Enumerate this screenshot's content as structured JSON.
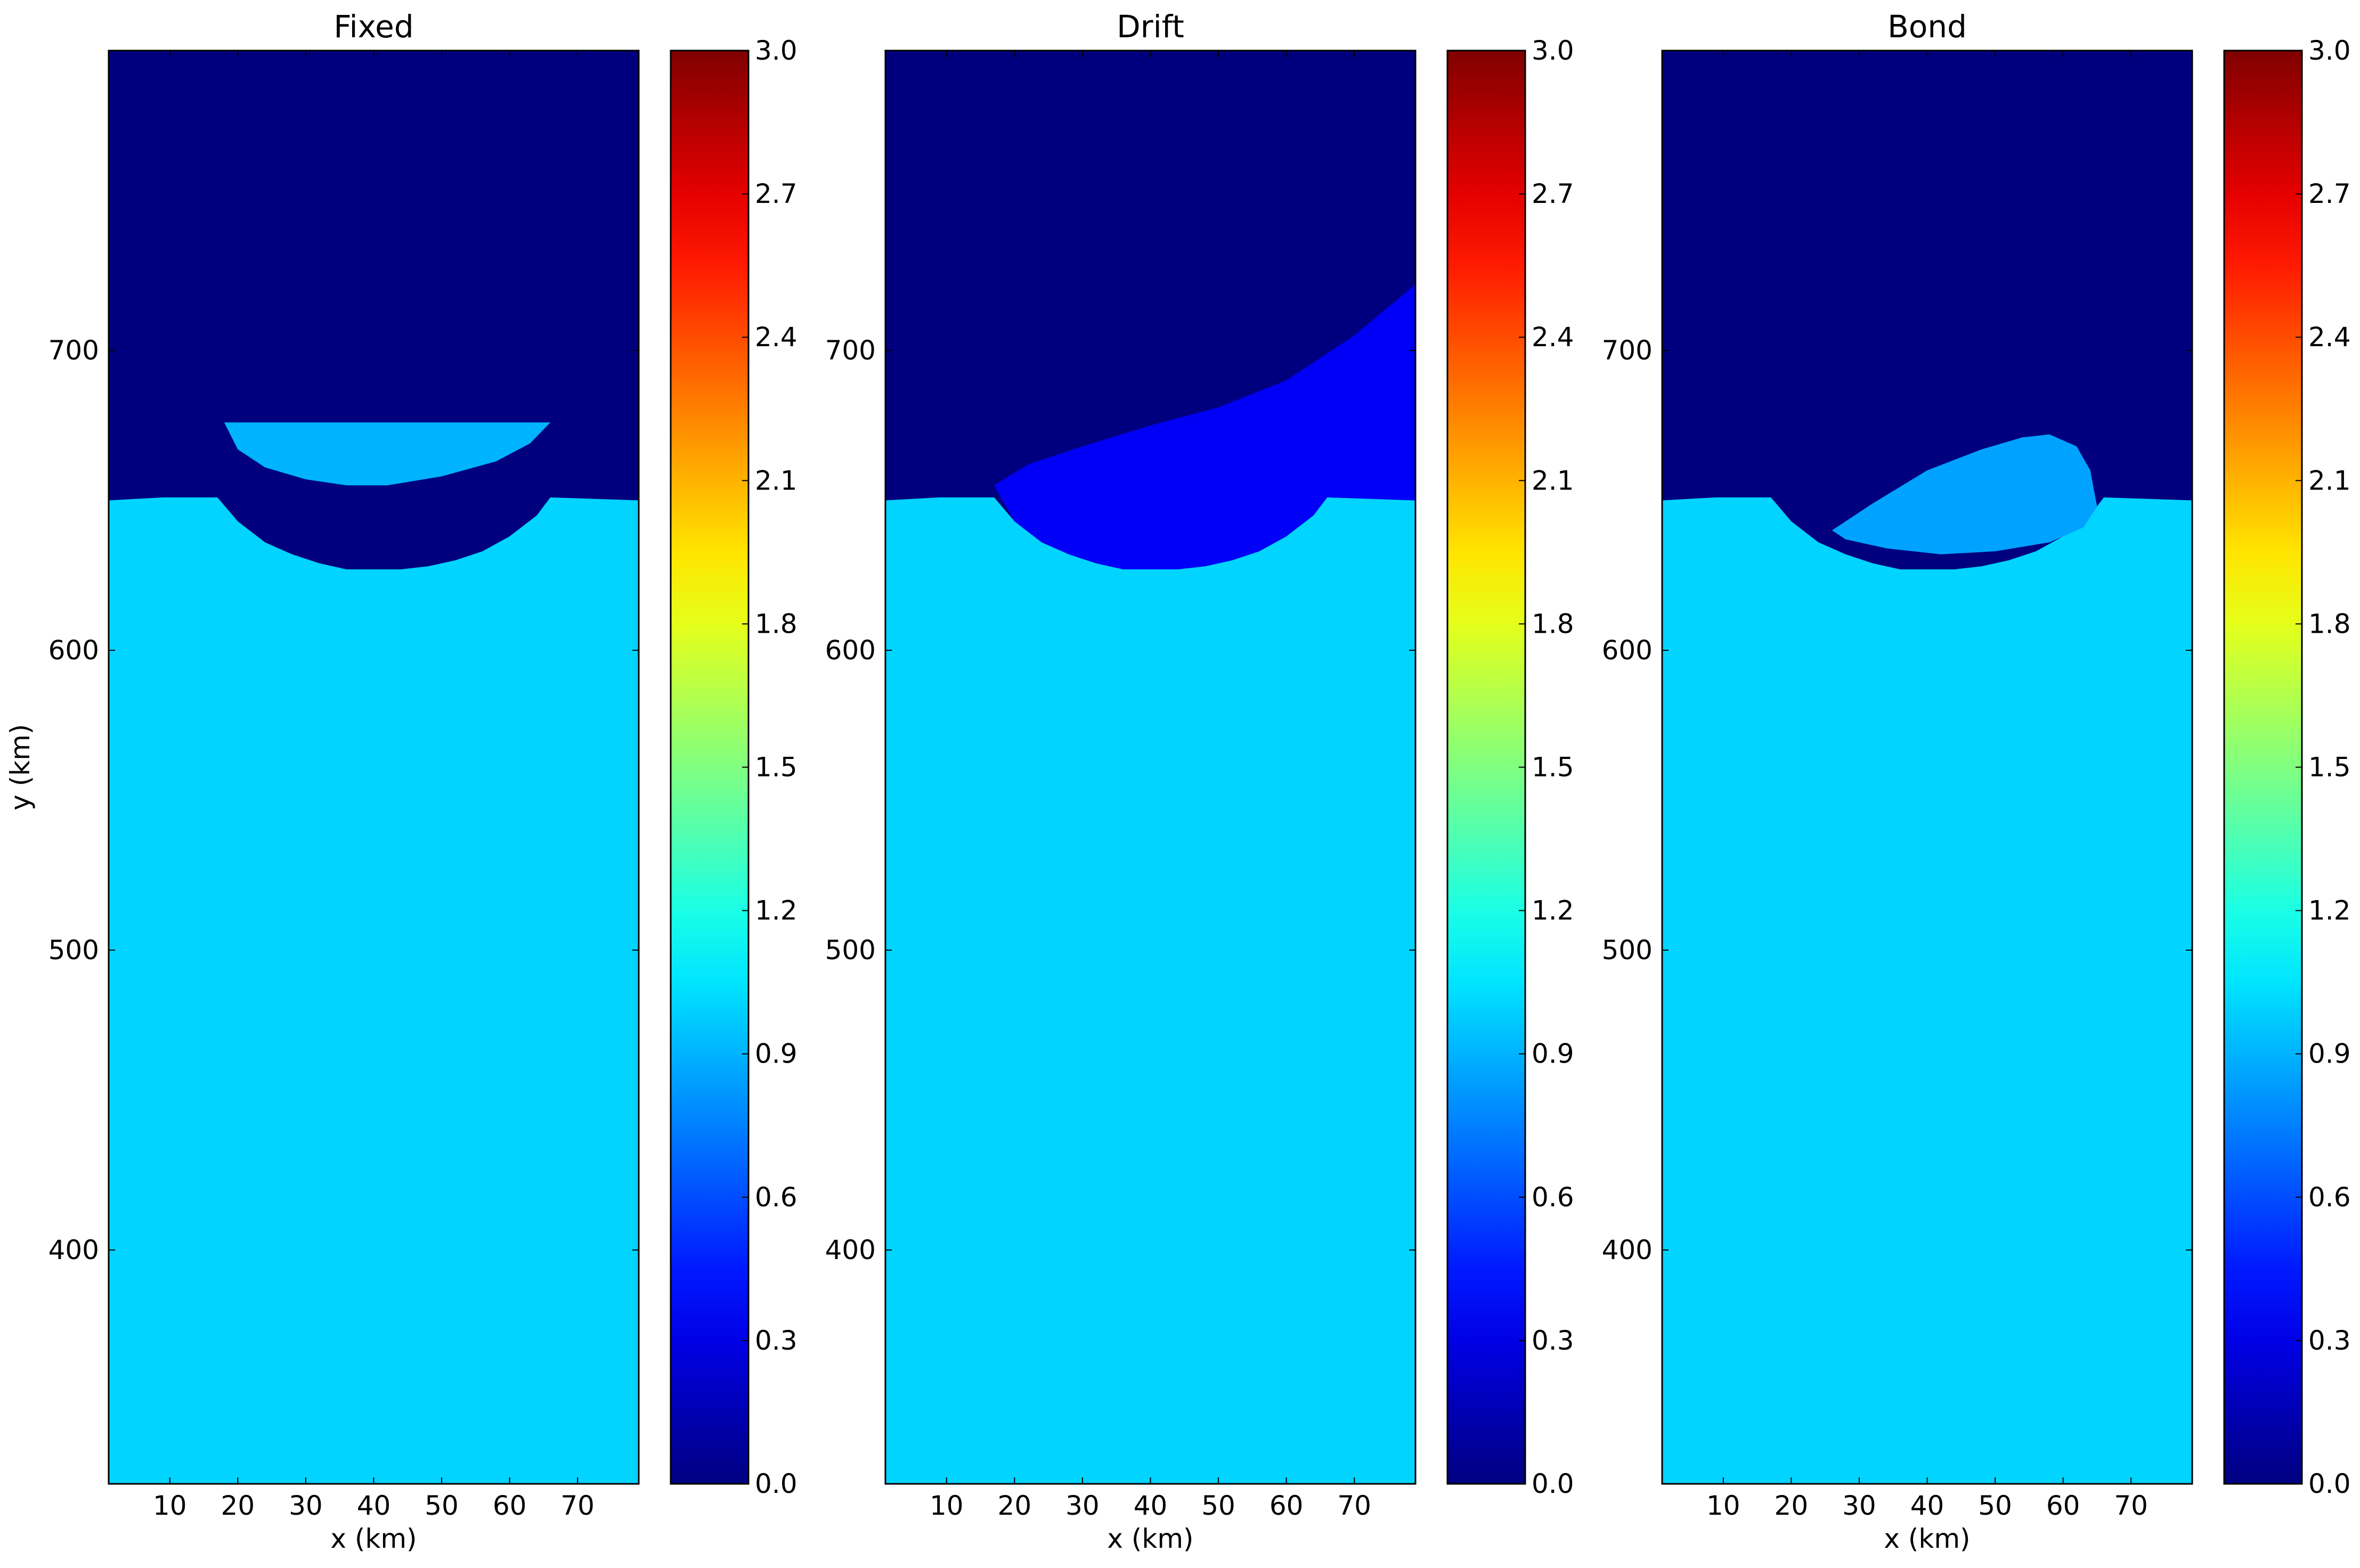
{
  "figure": {
    "colormap": "jet",
    "colorbar": {
      "range": [
        0.0,
        3.0
      ],
      "ticks": [
        "0.0",
        "0.3",
        "0.6",
        "0.9",
        "1.2",
        "1.5",
        "1.8",
        "2.1",
        "2.4",
        "2.7",
        "3.0"
      ]
    },
    "colors": {
      "low": "#00007f",
      "bulk": "#00d4ff",
      "upper_dark": "#00007f"
    }
  },
  "chart_data": [
    {
      "type": "heatmap",
      "title": "Fixed",
      "xlabel": "x (km)",
      "ylabel": "y (km)",
      "xlim": [
        1,
        79
      ],
      "ylim": [
        322,
        800
      ],
      "xticks": [
        "10",
        "20",
        "30",
        "40",
        "50",
        "60",
        "70"
      ],
      "yticks": [
        "400",
        "500",
        "600",
        "700"
      ],
      "interface": {
        "x": [
          1,
          9,
          17,
          20,
          24,
          28,
          32,
          36,
          40,
          44,
          48,
          52,
          56,
          60,
          64,
          66,
          79
        ],
        "y": [
          650,
          651,
          651,
          643,
          636,
          632,
          629,
          627,
          627,
          627,
          628,
          630,
          633,
          638,
          645,
          651,
          650
        ]
      },
      "features": [
        {
          "label": "lens",
          "value": 0.9,
          "x": [
            18,
            66,
            63,
            58,
            50,
            42,
            36,
            30,
            24,
            20,
            18
          ],
          "y": [
            676,
            676,
            669,
            663,
            658,
            655,
            655,
            657,
            661,
            667,
            676
          ]
        }
      ]
    },
    {
      "type": "heatmap",
      "title": "Drift",
      "xlabel": "x (km)",
      "ylabel": "",
      "xlim": [
        1,
        79
      ],
      "ylim": [
        322,
        800
      ],
      "xticks": [
        "10",
        "20",
        "30",
        "40",
        "50",
        "60",
        "70"
      ],
      "yticks": [
        "400",
        "500",
        "600",
        "700"
      ],
      "interface": {
        "x": [
          1,
          9,
          17,
          20,
          24,
          28,
          32,
          36,
          40,
          44,
          48,
          52,
          56,
          60,
          64,
          66,
          79
        ],
        "y": [
          650,
          651,
          651,
          643,
          636,
          632,
          629,
          627,
          627,
          627,
          628,
          630,
          633,
          638,
          645,
          651,
          650
        ]
      },
      "features": [
        {
          "label": "mixed-zone",
          "value": 0.35,
          "x": [
            17,
            22,
            30,
            40,
            50,
            60,
            70,
            79,
            79,
            66,
            64,
            60,
            56,
            52,
            48,
            44,
            40,
            36,
            32,
            28,
            24,
            20,
            17
          ],
          "y": [
            655,
            662,
            668,
            675,
            681,
            690,
            705,
            722,
            650,
            651,
            645,
            638,
            633,
            630,
            628,
            627,
            627,
            627,
            629,
            632,
            636,
            643,
            655
          ]
        }
      ]
    },
    {
      "type": "heatmap",
      "title": "Bond",
      "xlabel": "x (km)",
      "ylabel": "",
      "xlim": [
        1,
        79
      ],
      "ylim": [
        322,
        800
      ],
      "xticks": [
        "10",
        "20",
        "30",
        "40",
        "50",
        "60",
        "70"
      ],
      "yticks": [
        "400",
        "500",
        "600",
        "700"
      ],
      "interface": {
        "x": [
          1,
          9,
          17,
          20,
          24,
          28,
          32,
          36,
          40,
          44,
          48,
          52,
          56,
          60,
          64,
          66,
          79
        ],
        "y": [
          650,
          651,
          651,
          643,
          636,
          632,
          629,
          627,
          627,
          627,
          628,
          630,
          633,
          638,
          645,
          651,
          650
        ]
      },
      "features": [
        {
          "label": "tilted-lens",
          "value": 0.85,
          "x": [
            26,
            32,
            40,
            48,
            54,
            58,
            62,
            64,
            65,
            63,
            58,
            50,
            42,
            34,
            28,
            26
          ],
          "y": [
            640,
            649,
            660,
            667,
            671,
            672,
            668,
            660,
            648,
            641,
            636,
            633,
            632,
            634,
            637,
            640
          ]
        }
      ]
    }
  ]
}
